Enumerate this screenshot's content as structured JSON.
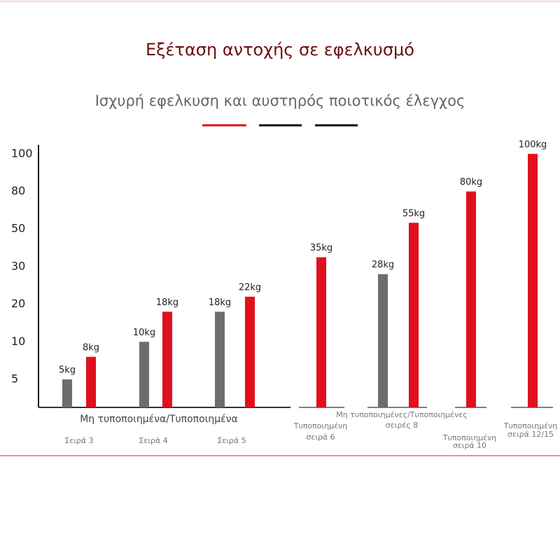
{
  "chart_data": {
    "type": "bar",
    "title": "Εξέταση αντοχής σε εφελκυσμό",
    "subtitle": "Ισχυρή εφελκυση και αυστηρός ποιοτικός έλεγχος",
    "ylim": [
      0,
      100
    ],
    "yticks": [
      5,
      10,
      20,
      30,
      50,
      80,
      100
    ],
    "group_label": "Μη τυποποιημένα/Τυποποιημένα",
    "groups": [
      {
        "label": [
          "Σειρά 3"
        ],
        "values": [
          5,
          8
        ],
        "value_labels": [
          "5kg",
          "8kg"
        ],
        "colors": [
          "#6d6d6d",
          "#e0101e"
        ]
      },
      {
        "label": [
          "Σειρά 4"
        ],
        "values": [
          10,
          18
        ],
        "value_labels": [
          "10kg",
          "18kg"
        ],
        "colors": [
          "#6d6d6d",
          "#e0101e"
        ]
      },
      {
        "label": [
          "Σειρά 5"
        ],
        "values": [
          18,
          22
        ],
        "value_labels": [
          "18kg",
          "22kg"
        ],
        "colors": [
          "#6d6d6d",
          "#e0101e"
        ]
      },
      {
        "label": [
          "Τυποποιημένη",
          "σειρά 6"
        ],
        "values": [
          35
        ],
        "value_labels": [
          "35kg"
        ],
        "colors": [
          "#e0101e"
        ]
      },
      {
        "label": [
          "Μη τυποποιημένες/Τυποποιημένες",
          "σειρές 8"
        ],
        "values": [
          28,
          55
        ],
        "value_labels": [
          "28kg",
          "55kg"
        ],
        "colors": [
          "#6d6d6d",
          "#e0101e"
        ]
      },
      {
        "label": [
          "Τυποποιημένη",
          "σειρά 10"
        ],
        "values": [
          80
        ],
        "value_labels": [
          "80kg"
        ],
        "colors": [
          "#e0101e"
        ]
      },
      {
        "label": [
          "Τυποποιημένη",
          "σειρά 12/15"
        ],
        "values": [
          100
        ],
        "value_labels": [
          "100kg"
        ],
        "colors": [
          "#e0101e"
        ]
      }
    ]
  }
}
